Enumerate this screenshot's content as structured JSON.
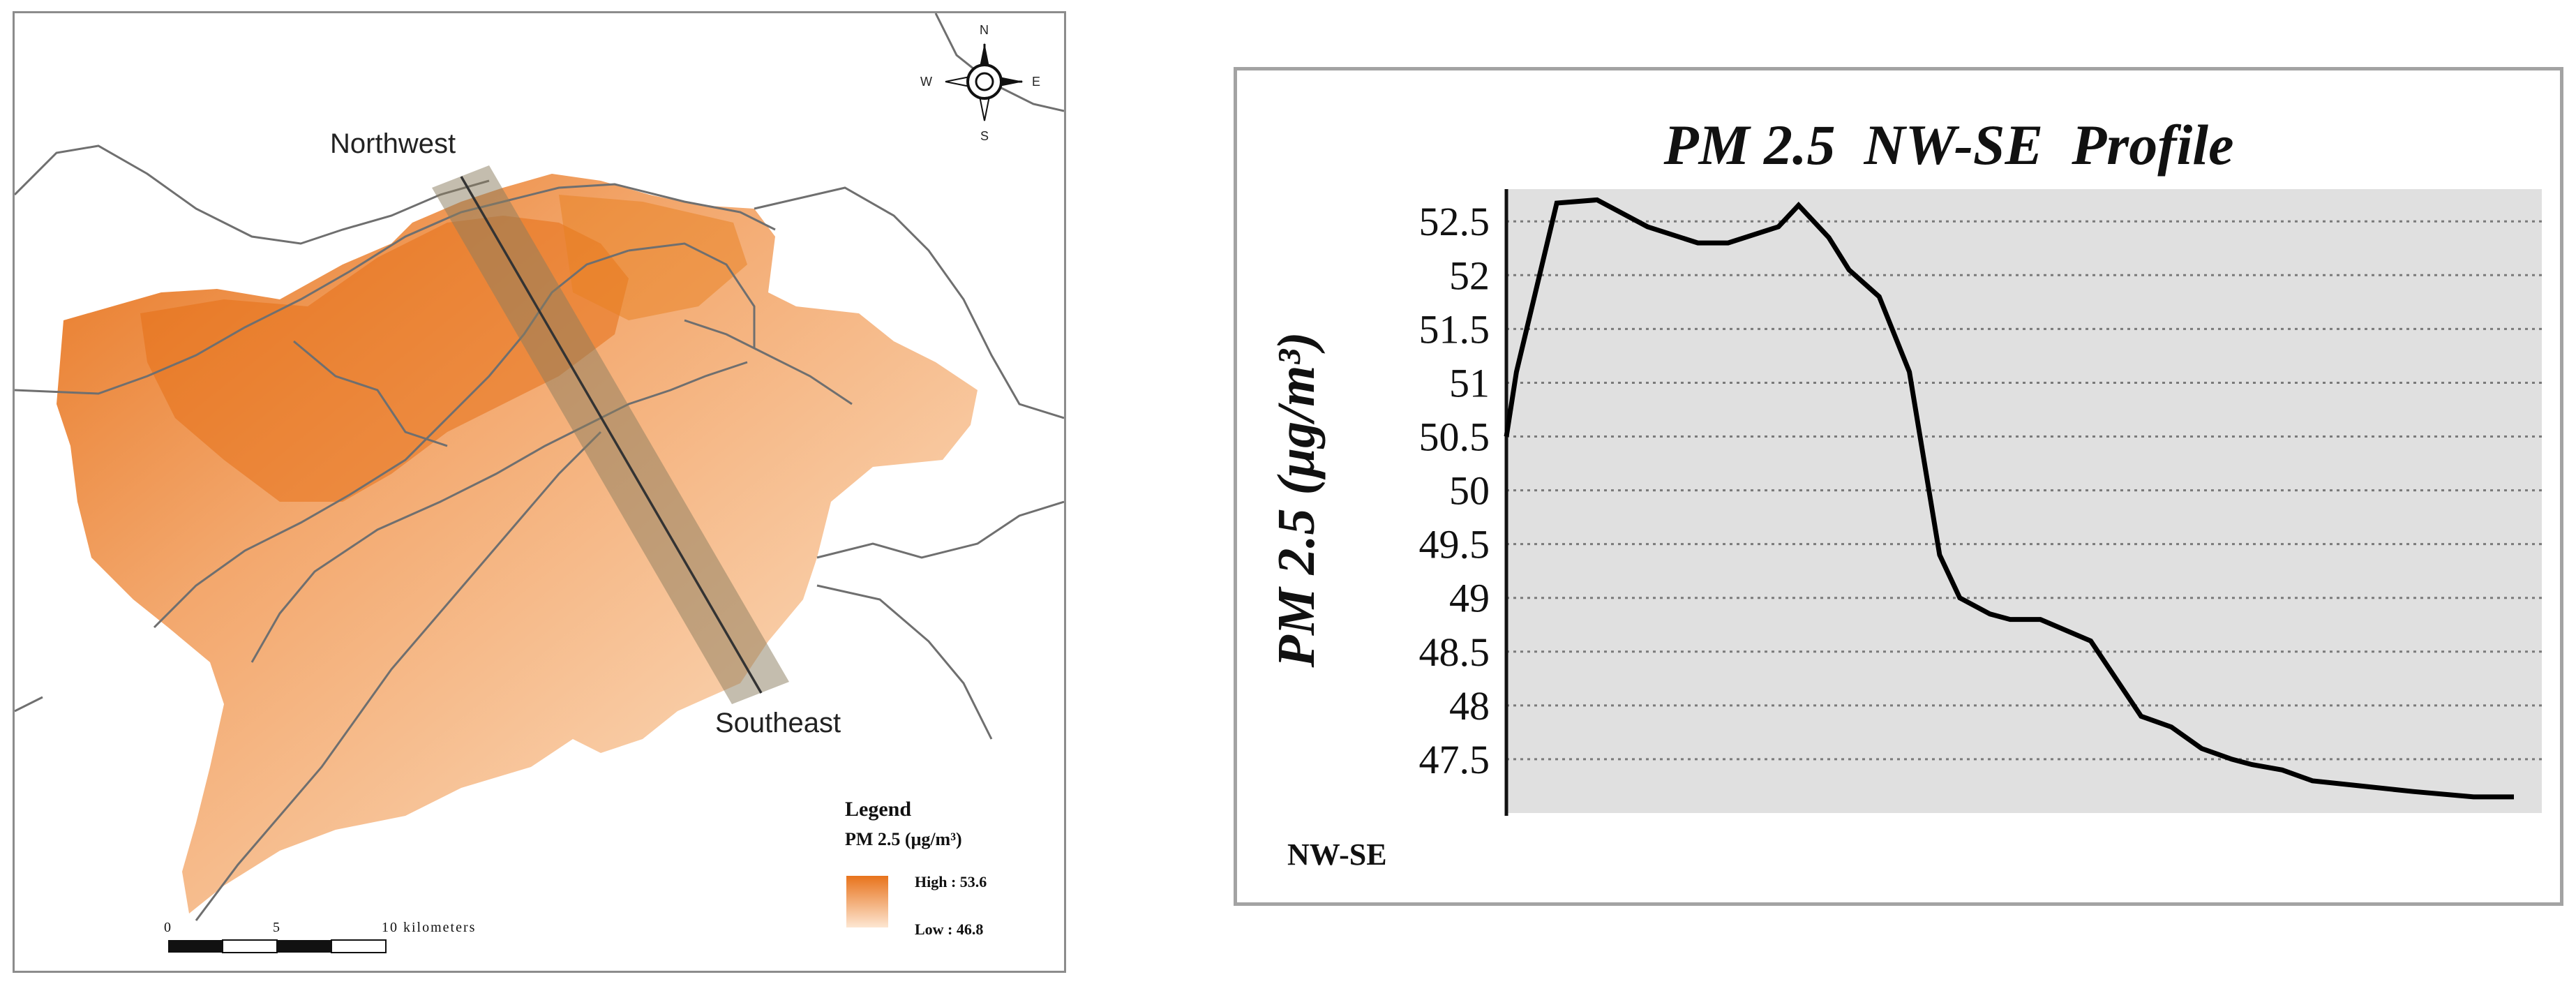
{
  "map": {
    "compass": {
      "n": "N",
      "s": "S",
      "e": "E",
      "w": "W"
    },
    "label_northwest": "Northwest",
    "label_southeast": "Southeast",
    "legend": {
      "title": "Legend",
      "subtitle": "PM 2.5 (μg/m³)",
      "high": "High : 53.6",
      "low": "Low : 46.8",
      "color_high": "#e8731c",
      "color_low": "#fde6d2"
    },
    "scale": {
      "t0": "0",
      "t5": "5",
      "t10": "10 kilometers"
    }
  },
  "chart_data": {
    "type": "line",
    "title": "PM 2.5  NW-SE  Profile",
    "ylabel": "PM 2.5 (μg/m³)",
    "xlabel": "NW-SE",
    "ylim": [
      47.0,
      52.8
    ],
    "xlim": [
      0,
      100
    ],
    "yticks": [
      "52.5",
      "52",
      "51.5",
      "51",
      "50.5",
      "50",
      "49.5",
      "49",
      "48.5",
      "48",
      "47.5"
    ],
    "grid": true,
    "series": [
      {
        "name": "PM 2.5",
        "x": [
          0,
          1,
          5,
          9,
          14,
          19,
          22,
          27,
          29,
          32,
          34,
          37,
          40,
          43,
          45,
          48,
          50,
          53,
          58,
          63,
          66,
          69,
          72,
          74,
          77,
          80,
          85,
          90,
          96,
          100
        ],
        "values": [
          50.5,
          51.1,
          52.67,
          52.7,
          52.45,
          52.3,
          52.3,
          52.45,
          52.65,
          52.35,
          52.05,
          51.8,
          51.1,
          49.4,
          49.0,
          48.85,
          48.8,
          48.8,
          48.6,
          47.9,
          47.8,
          47.6,
          47.5,
          47.45,
          47.4,
          47.3,
          47.25,
          47.2,
          47.15,
          47.15
        ]
      }
    ]
  }
}
